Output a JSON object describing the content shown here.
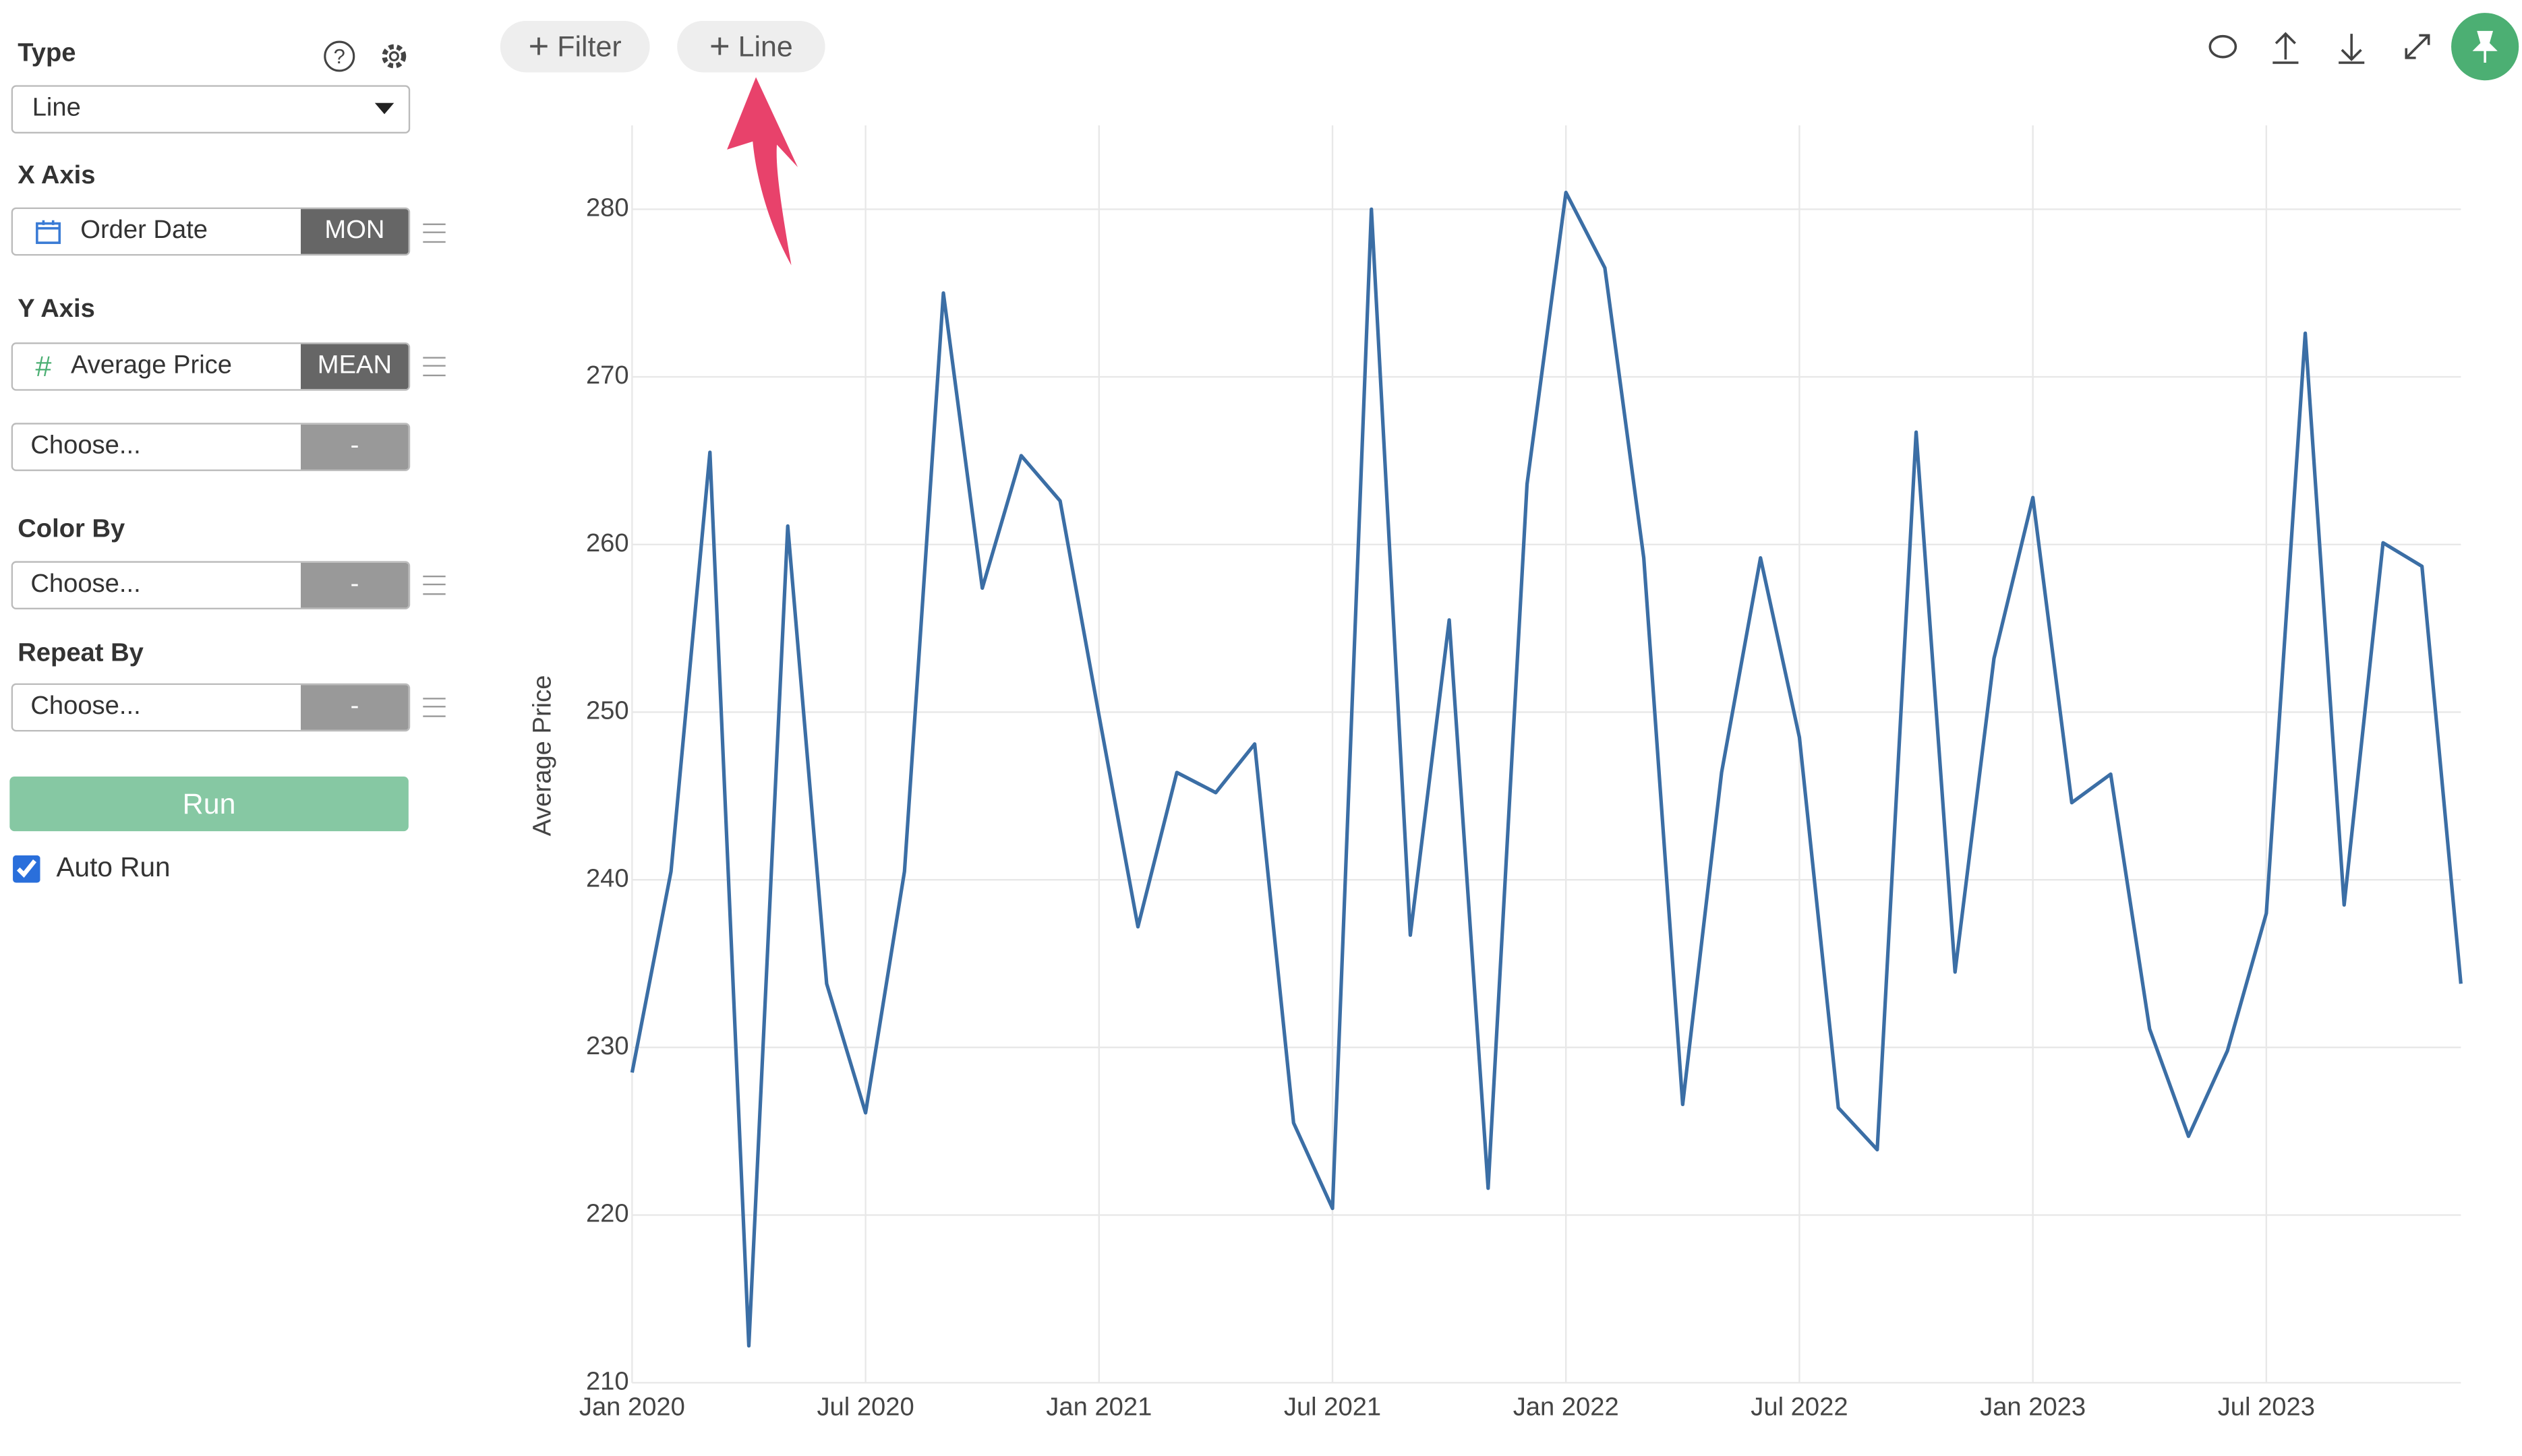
{
  "toolbar": {
    "filter": "Filter",
    "line": "Line"
  },
  "sidebar": {
    "type": {
      "label": "Type",
      "value": "Line"
    },
    "x_axis": {
      "label": "X Axis",
      "field": "Order Date",
      "aggregation": "MON"
    },
    "y_axis": {
      "label": "Y Axis",
      "field": "Average Price",
      "aggregation": "MEAN",
      "extra": {
        "placeholder": "Choose...",
        "aggregation": "-"
      }
    },
    "color_by": {
      "label": "Color By",
      "placeholder": "Choose...",
      "aggregation": "-"
    },
    "repeat_by": {
      "label": "Repeat By",
      "placeholder": "Choose...",
      "aggregation": "-"
    },
    "run": "Run",
    "auto_run": {
      "label": "Auto Run",
      "checked": true
    }
  },
  "chart_data": {
    "type": "line",
    "y_label": "Average Price",
    "color": "#3b6ea5",
    "grid": true,
    "x": [
      "2020-01",
      "2020-02",
      "2020-03",
      "2020-04",
      "2020-05",
      "2020-06",
      "2020-07",
      "2020-08",
      "2020-09",
      "2020-10",
      "2020-11",
      "2020-12",
      "2021-01",
      "2021-02",
      "2021-03",
      "2021-04",
      "2021-05",
      "2021-06",
      "2021-07",
      "2021-08",
      "2021-09",
      "2021-10",
      "2021-11",
      "2021-12",
      "2022-01",
      "2022-02",
      "2022-03",
      "2022-04",
      "2022-05",
      "2022-06",
      "2022-07",
      "2022-08",
      "2022-09",
      "2022-10",
      "2022-11",
      "2022-12",
      "2023-01",
      "2023-02",
      "2023-03",
      "2023-04",
      "2023-05",
      "2023-06",
      "2023-07",
      "2023-08",
      "2023-09",
      "2023-10",
      "2023-11",
      "2023-12"
    ],
    "values": [
      228.5,
      240.5,
      265.5,
      212.2,
      261.1,
      233.8,
      226.1,
      240.5,
      275,
      257.4,
      265.3,
      262.6,
      249.8,
      237.2,
      246.4,
      245.2,
      248.1,
      225.5,
      220.4,
      280,
      236.7,
      255.5,
      221.6,
      263.6,
      281,
      276.5,
      259.2,
      226.6,
      246.4,
      259.2,
      248.5,
      226.4,
      223.9,
      266.7,
      234.5,
      253.2,
      262.8,
      244.6,
      246.3,
      231.1,
      224.7,
      229.8,
      238,
      272.6,
      238.5,
      260.1,
      258.7,
      233.8
    ],
    "xlim": [
      "2020-01",
      "2023-12"
    ],
    "xticks": [
      {
        "value": "2020-01",
        "label": "Jan 2020"
      },
      {
        "value": "2020-07",
        "label": "Jul 2020"
      },
      {
        "value": "2021-01",
        "label": "Jan 2021"
      },
      {
        "value": "2021-07",
        "label": "Jul 2021"
      },
      {
        "value": "2022-01",
        "label": "Jan 2022"
      },
      {
        "value": "2022-07",
        "label": "Jul 2022"
      },
      {
        "value": "2023-01",
        "label": "Jan 2023"
      },
      {
        "value": "2023-07",
        "label": "Jul 2023"
      }
    ],
    "ylim": [
      210,
      285
    ],
    "yticks": [
      210,
      220,
      230,
      240,
      250,
      260,
      270,
      280
    ]
  }
}
